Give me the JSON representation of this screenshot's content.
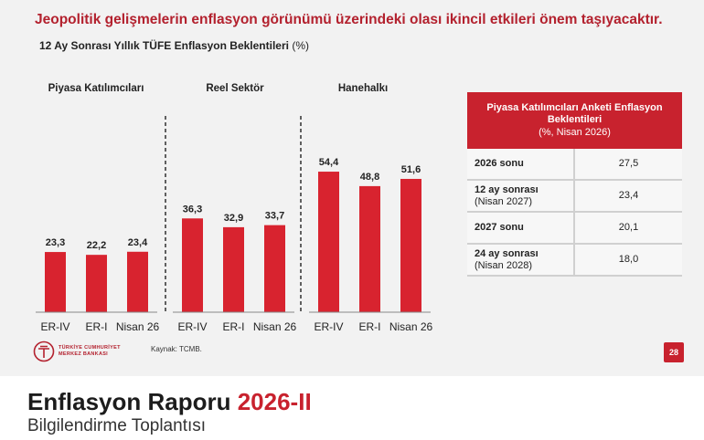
{
  "header": {
    "headline": "Jeopolitik gelişmelerin enflasyon görünümü üzerindeki olası ikincil etkileri önem taşıyacaktır.",
    "subtitle": "12 Ay Sonrası Yıllık TÜFE Enflasyon Beklentileri",
    "subtitle_unit": "(%)"
  },
  "chart_data": {
    "type": "bar",
    "bar_color": "#d8232f",
    "groups": [
      {
        "title": "Piyasa Katılımcıları",
        "categories": [
          "ER-IV",
          "ER-I",
          "Nisan 26"
        ],
        "values": [
          23.3,
          22.2,
          23.4
        ],
        "labels": [
          "23,3",
          "22,2",
          "23,4"
        ]
      },
      {
        "title": "Reel Sektör",
        "categories": [
          "ER-IV",
          "ER-I",
          "Nisan 26"
        ],
        "values": [
          36.3,
          32.9,
          33.7
        ],
        "labels": [
          "36,3",
          "32,9",
          "33,7"
        ]
      },
      {
        "title": "Hanehalkı",
        "categories": [
          "ER-IV",
          "ER-I",
          "Nisan 26"
        ],
        "values": [
          54.4,
          48.8,
          51.6
        ],
        "labels": [
          "54,4",
          "48,8",
          "51,6"
        ]
      }
    ]
  },
  "table": {
    "title": "Piyasa Katılımcıları Anketi Enflasyon Beklentileri",
    "subtitle": "(%, Nisan 2026)",
    "rows": [
      {
        "label": "2026 sonu",
        "sub": "",
        "value": "27,5"
      },
      {
        "label": "12 ay sonrası",
        "sub": "(Nisan 2027)",
        "value": "23,4"
      },
      {
        "label": "2027 sonu",
        "sub": "",
        "value": "20,1"
      },
      {
        "label": "24 ay sonrası",
        "sub": "(Nisan 2028)",
        "value": "18,0"
      }
    ]
  },
  "footer": {
    "logo_line1": "TÜRKİYE CUMHURİYET",
    "logo_line2": "MERKEZ BANKASI",
    "source": "Kaynak: TCMB.",
    "page_number": "28"
  },
  "report": {
    "title_part1": "Enflasyon Raporu",
    "title_part2": "2026-II",
    "subtitle": "Bilgilendirme Toplantısı"
  },
  "colors": {
    "accent": "#c8222e",
    "headline": "#b3212e"
  }
}
